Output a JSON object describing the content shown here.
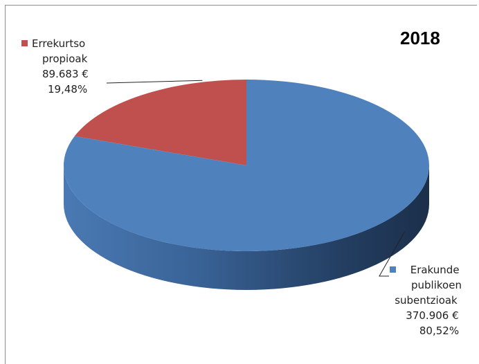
{
  "chart_data": {
    "type": "pie",
    "title": "2018",
    "slices": [
      {
        "label": "Errekurtso propioak",
        "label_lines": [
          "Errekurtso",
          "propioak"
        ],
        "value_text": "89.683 €",
        "value": 89683,
        "percent": 19.48,
        "percent_text": "19,48%",
        "color": "#c0504d"
      },
      {
        "label": "Erakunde publikoen subentzioak",
        "label_lines": [
          "Erakunde",
          "publikoen",
          "subentzioak"
        ],
        "value_text": "370.906 €",
        "value": 370906,
        "percent": 80.52,
        "percent_text": "80,52%",
        "color": "#4f81bd"
      }
    ],
    "style": "3d"
  }
}
